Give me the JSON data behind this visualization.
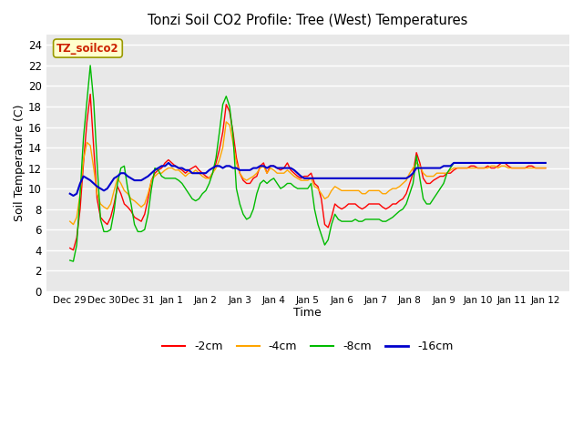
{
  "title": "Tonzi Soil CO2 Profile: Tree (West) Temperatures",
  "xlabel": "Time",
  "ylabel": "Soil Temperature (C)",
  "ylim": [
    0,
    25
  ],
  "yticks": [
    0,
    2,
    4,
    6,
    8,
    10,
    12,
    14,
    16,
    18,
    20,
    22,
    24
  ],
  "fig_facecolor": "#d8d8d8",
  "ax_facecolor": "#e0e0e0",
  "watermark_text": "TZ_soilco2",
  "watermark_color": "#cc2200",
  "watermark_bg": "#ffffcc",
  "watermark_edge": "#999900",
  "legend_entries": [
    "-2cm",
    "-4cm",
    "-8cm",
    "-16cm"
  ],
  "legend_colors": [
    "#ff0000",
    "#ffa500",
    "#00bb00",
    "#0000cc"
  ],
  "x_tick_labels": [
    "Dec 29",
    "Dec 30",
    "Dec 31",
    "Jan 1",
    "Jan 2",
    "Jan 3",
    "Jan 4",
    "Jan 5",
    "Jan 6",
    "Jan 7",
    "Jan 8",
    "Jan 9",
    "Jan 10",
    "Jan 11",
    "Jan 12"
  ],
  "line_colors": {
    "2cm": "#ff0000",
    "4cm": "#ffa500",
    "8cm": "#00bb00",
    "16cm": "#0000cc"
  },
  "t_2cm": [
    4.2,
    4.0,
    5.2,
    8.0,
    12.5,
    16.5,
    19.2,
    14.0,
    9.0,
    7.2,
    6.8,
    6.5,
    7.2,
    8.5,
    10.2,
    9.5,
    8.5,
    8.2,
    7.8,
    7.2,
    7.0,
    6.8,
    7.5,
    9.0,
    10.8,
    11.5,
    11.8,
    12.0,
    12.5,
    12.8,
    12.5,
    12.2,
    12.0,
    11.8,
    11.5,
    11.8,
    12.0,
    12.2,
    11.8,
    11.5,
    11.2,
    11.0,
    11.5,
    12.5,
    13.8,
    15.5,
    18.2,
    17.5,
    15.5,
    13.0,
    11.5,
    10.8,
    10.5,
    10.5,
    11.0,
    11.2,
    12.2,
    12.5,
    11.5,
    12.2,
    12.2,
    12.0,
    11.8,
    12.0,
    12.5,
    11.8,
    11.5,
    11.2,
    11.0,
    11.2,
    11.2,
    11.5,
    10.5,
    10.2,
    9.0,
    6.5,
    6.2,
    7.2,
    8.5,
    8.2,
    8.0,
    8.2,
    8.5,
    8.5,
    8.5,
    8.2,
    8.0,
    8.2,
    8.5,
    8.5,
    8.5,
    8.5,
    8.2,
    8.0,
    8.2,
    8.5,
    8.5,
    8.8,
    9.0,
    9.5,
    10.5,
    11.5,
    13.5,
    12.5,
    11.0,
    10.5,
    10.5,
    10.8,
    11.0,
    11.2,
    11.2,
    11.5,
    11.5,
    11.8,
    12.0,
    12.0,
    12.0,
    12.0,
    12.2,
    12.2,
    12.0,
    12.0,
    12.0,
    12.2,
    12.0,
    12.0,
    12.2,
    12.5,
    12.5,
    12.2,
    12.0,
    12.0,
    12.0,
    12.0,
    12.0,
    12.2,
    12.2,
    12.0,
    12.0,
    12.0,
    12.0
  ],
  "t_4cm": [
    6.8,
    6.5,
    7.2,
    9.5,
    12.8,
    14.5,
    14.2,
    12.0,
    9.5,
    8.5,
    8.2,
    8.0,
    8.5,
    9.8,
    11.0,
    10.5,
    9.8,
    9.5,
    9.0,
    8.8,
    8.5,
    8.2,
    8.5,
    9.5,
    10.8,
    11.2,
    11.5,
    11.5,
    11.8,
    12.0,
    12.0,
    11.8,
    11.8,
    11.5,
    11.2,
    11.5,
    11.5,
    11.8,
    11.5,
    11.2,
    11.0,
    11.0,
    11.5,
    12.0,
    12.8,
    14.0,
    16.5,
    16.2,
    14.5,
    12.5,
    11.5,
    11.0,
    10.8,
    11.0,
    11.2,
    11.5,
    12.0,
    12.2,
    11.5,
    12.0,
    11.8,
    11.5,
    11.5,
    11.5,
    11.8,
    11.5,
    11.2,
    11.0,
    10.8,
    10.8,
    10.8,
    11.0,
    10.2,
    10.0,
    9.5,
    9.0,
    9.2,
    9.8,
    10.2,
    10.0,
    9.8,
    9.8,
    9.8,
    9.8,
    9.8,
    9.8,
    9.5,
    9.5,
    9.8,
    9.8,
    9.8,
    9.8,
    9.5,
    9.5,
    9.8,
    10.0,
    10.0,
    10.2,
    10.5,
    10.8,
    11.5,
    12.0,
    12.5,
    12.2,
    11.5,
    11.2,
    11.2,
    11.2,
    11.5,
    11.5,
    11.5,
    11.5,
    11.8,
    12.0,
    12.0,
    12.0,
    12.0,
    12.0,
    12.0,
    12.0,
    12.0,
    12.0,
    12.0,
    12.0,
    12.2,
    12.2,
    12.0,
    12.2,
    12.2,
    12.0,
    12.0,
    12.0,
    12.0,
    12.0,
    12.0,
    12.0,
    12.0,
    12.0,
    12.0,
    12.0,
    12.0
  ],
  "t_8cm": [
    3.0,
    2.9,
    4.5,
    9.5,
    15.0,
    18.5,
    22.0,
    18.5,
    12.5,
    7.0,
    5.8,
    5.8,
    6.0,
    7.8,
    10.5,
    12.0,
    12.2,
    10.0,
    8.5,
    6.5,
    5.8,
    5.8,
    6.0,
    7.5,
    10.0,
    12.0,
    11.8,
    11.2,
    11.0,
    11.0,
    11.0,
    11.0,
    10.8,
    10.5,
    10.0,
    9.5,
    9.0,
    8.8,
    9.0,
    9.5,
    9.8,
    10.5,
    11.5,
    13.0,
    15.5,
    18.2,
    19.0,
    18.0,
    15.2,
    10.0,
    8.5,
    7.5,
    7.0,
    7.2,
    8.0,
    9.5,
    10.5,
    10.8,
    10.5,
    10.8,
    11.0,
    10.5,
    10.0,
    10.2,
    10.5,
    10.5,
    10.2,
    10.0,
    10.0,
    10.0,
    10.0,
    10.5,
    8.0,
    6.5,
    5.5,
    4.5,
    5.0,
    6.5,
    7.5,
    7.0,
    6.8,
    6.8,
    6.8,
    6.8,
    7.0,
    6.8,
    6.8,
    7.0,
    7.0,
    7.0,
    7.0,
    7.0,
    6.8,
    6.8,
    7.0,
    7.2,
    7.5,
    7.8,
    8.0,
    8.5,
    9.5,
    10.5,
    13.2,
    11.0,
    9.0,
    8.5,
    8.5,
    9.0,
    9.5,
    10.0,
    10.5,
    11.5,
    12.0,
    12.5,
    12.5,
    12.5,
    12.5,
    12.5,
    12.5,
    12.5,
    12.5,
    12.5,
    12.5,
    12.5,
    12.5,
    12.5,
    12.5,
    12.5,
    12.5,
    12.5,
    12.5,
    12.5,
    12.5,
    12.5,
    12.5,
    12.5,
    12.5,
    12.5,
    12.5,
    12.5,
    12.5
  ],
  "t_16cm": [
    9.5,
    9.3,
    9.5,
    10.5,
    11.2,
    11.0,
    10.8,
    10.5,
    10.2,
    10.0,
    9.8,
    10.0,
    10.5,
    11.0,
    11.2,
    11.5,
    11.5,
    11.2,
    11.0,
    10.8,
    10.8,
    10.8,
    11.0,
    11.2,
    11.5,
    11.8,
    12.0,
    12.2,
    12.2,
    12.5,
    12.2,
    12.2,
    12.0,
    12.0,
    11.8,
    11.8,
    11.5,
    11.5,
    11.5,
    11.5,
    11.5,
    11.8,
    12.0,
    12.2,
    12.2,
    12.0,
    12.2,
    12.2,
    12.0,
    12.0,
    11.8,
    11.8,
    11.8,
    11.8,
    12.0,
    12.0,
    12.2,
    12.2,
    12.0,
    12.2,
    12.2,
    12.0,
    12.0,
    12.0,
    12.0,
    12.0,
    11.8,
    11.5,
    11.2,
    11.0,
    11.0,
    11.0,
    11.0,
    11.0,
    11.0,
    11.0,
    11.0,
    11.0,
    11.0,
    11.0,
    11.0,
    11.0,
    11.0,
    11.0,
    11.0,
    11.0,
    11.0,
    11.0,
    11.0,
    11.0,
    11.0,
    11.0,
    11.0,
    11.0,
    11.0,
    11.0,
    11.0,
    11.0,
    11.0,
    11.0,
    11.2,
    11.5,
    12.0,
    12.0,
    12.0,
    12.0,
    12.0,
    12.0,
    12.0,
    12.0,
    12.2,
    12.2,
    12.2,
    12.5,
    12.5,
    12.5,
    12.5,
    12.5,
    12.5,
    12.5,
    12.5,
    12.5,
    12.5,
    12.5,
    12.5,
    12.5,
    12.5,
    12.5,
    12.5,
    12.5,
    12.5,
    12.5,
    12.5,
    12.5,
    12.5,
    12.5,
    12.5,
    12.5,
    12.5,
    12.5,
    12.5
  ]
}
